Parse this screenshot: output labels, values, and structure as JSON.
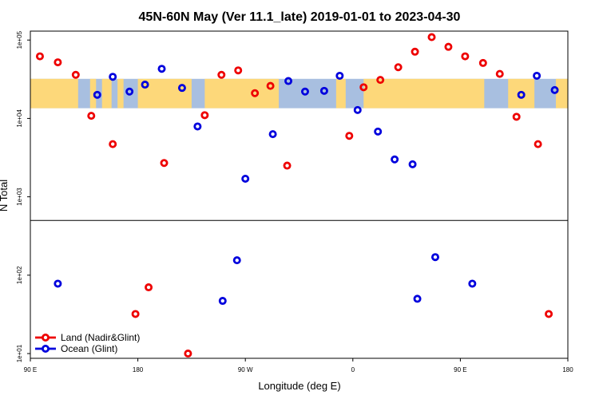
{
  "chart_data": {
    "type": "scatter",
    "title": "45N-60N May (Ver 11.1_late)   2019-01-01 to 2023-04-30",
    "xlabel": "Longitude (deg E)",
    "ylabel": "N Total",
    "x_axis": {
      "min": 90,
      "max": 540,
      "ticks": [
        {
          "value": 90,
          "label": "90 E"
        },
        {
          "value": 180,
          "label": "180"
        },
        {
          "value": 270,
          "label": "90 W"
        },
        {
          "value": 360,
          "label": "0"
        },
        {
          "value": 450,
          "label": "90 E"
        },
        {
          "value": 540,
          "label": "180"
        }
      ]
    },
    "y_axis": {
      "scale": "log",
      "min": 8.7,
      "max": 130000,
      "break_at": 500,
      "ticks": [
        {
          "value": 10,
          "label": "1e+01"
        },
        {
          "value": 100,
          "label": "1e+02"
        },
        {
          "value": 1000,
          "label": "1e+03"
        },
        {
          "value": 10000,
          "label": "1e+04"
        },
        {
          "value": 100000,
          "label": "1e+05"
        }
      ]
    },
    "latitude_band": {
      "y_min": 13500,
      "y_max": 32000,
      "ocean_color": "#a8bfe0",
      "land_color": "#fdd87a",
      "land_spans": [
        [
          90,
          130
        ],
        [
          140,
          145
        ],
        [
          150,
          158
        ],
        [
          163,
          168
        ],
        [
          180,
          225
        ],
        [
          236,
          298
        ],
        [
          346,
          354
        ],
        [
          369,
          470
        ],
        [
          490,
          512
        ],
        [
          530,
          540
        ]
      ]
    },
    "series": [
      {
        "name": "Land (Nadir&Glint)",
        "color": "#ee0000",
        "points": [
          {
            "x": 98,
            "y": 62000
          },
          {
            "x": 113,
            "y": 52000
          },
          {
            "x": 128,
            "y": 36000
          },
          {
            "x": 141,
            "y": 10800
          },
          {
            "x": 159,
            "y": 4700
          },
          {
            "x": 178,
            "y": 32
          },
          {
            "x": 189,
            "y": 70
          },
          {
            "x": 202,
            "y": 2700
          },
          {
            "x": 222,
            "y": 10
          },
          {
            "x": 236,
            "y": 11000
          },
          {
            "x": 250,
            "y": 36000
          },
          {
            "x": 264,
            "y": 41000
          },
          {
            "x": 278,
            "y": 21000
          },
          {
            "x": 291,
            "y": 26000
          },
          {
            "x": 305,
            "y": 2500
          },
          {
            "x": 357,
            "y": 6000
          },
          {
            "x": 369,
            "y": 25000
          },
          {
            "x": 383,
            "y": 31000
          },
          {
            "x": 398,
            "y": 45000
          },
          {
            "x": 412,
            "y": 71000
          },
          {
            "x": 426,
            "y": 109000
          },
          {
            "x": 440,
            "y": 82000
          },
          {
            "x": 454,
            "y": 62000
          },
          {
            "x": 469,
            "y": 51000
          },
          {
            "x": 483,
            "y": 37000
          },
          {
            "x": 497,
            "y": 10500
          },
          {
            "x": 515,
            "y": 4700
          },
          {
            "x": 524,
            "y": 32
          }
        ]
      },
      {
        "name": "Ocean (Glint)",
        "color": "#0000dd",
        "points": [
          {
            "x": 113,
            "y": 78
          },
          {
            "x": 146,
            "y": 20000
          },
          {
            "x": 159,
            "y": 34000
          },
          {
            "x": 173,
            "y": 22000
          },
          {
            "x": 186,
            "y": 27000
          },
          {
            "x": 200,
            "y": 43000
          },
          {
            "x": 217,
            "y": 24500
          },
          {
            "x": 230,
            "y": 7900
          },
          {
            "x": 251,
            "y": 47
          },
          {
            "x": 263,
            "y": 155
          },
          {
            "x": 270,
            "y": 1700
          },
          {
            "x": 293,
            "y": 6300
          },
          {
            "x": 306,
            "y": 30000
          },
          {
            "x": 320,
            "y": 22000
          },
          {
            "x": 336,
            "y": 22500
          },
          {
            "x": 349,
            "y": 35000
          },
          {
            "x": 364,
            "y": 12800
          },
          {
            "x": 381,
            "y": 6800
          },
          {
            "x": 395,
            "y": 3000
          },
          {
            "x": 410,
            "y": 2600
          },
          {
            "x": 414,
            "y": 50
          },
          {
            "x": 429,
            "y": 170
          },
          {
            "x": 460,
            "y": 78
          },
          {
            "x": 501,
            "y": 20000
          },
          {
            "x": 514,
            "y": 35000
          },
          {
            "x": 529,
            "y": 23000
          }
        ]
      }
    ],
    "legend": {
      "position": "bottom-left"
    }
  }
}
